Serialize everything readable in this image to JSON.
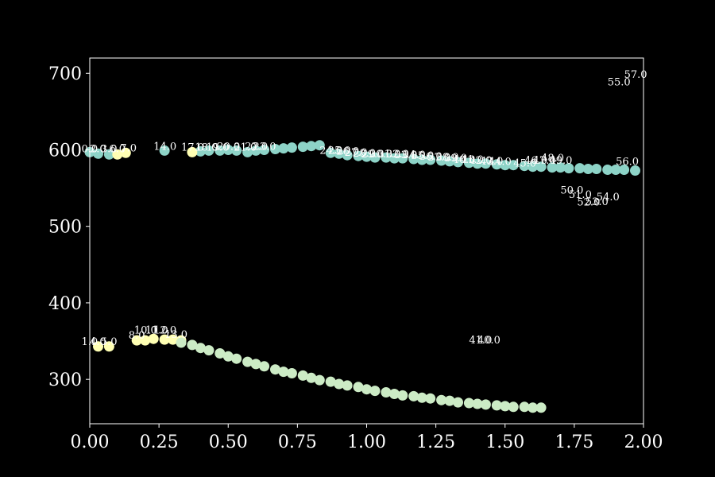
{
  "chart_data": {
    "type": "scatter",
    "xlim": [
      0,
      2
    ],
    "ylim": [
      242,
      720
    ],
    "x_ticks": [
      "0.00",
      "0.25",
      "0.50",
      "0.75",
      "1.00",
      "1.25",
      "1.50",
      "1.75",
      "2.00"
    ],
    "y_ticks": [
      "300",
      "400",
      "500",
      "600",
      "700"
    ],
    "grid": false,
    "colors": {
      "background": "#000000",
      "frame": "#ffffff",
      "text": "#ffffff",
      "teal": "#8dd3c7",
      "yellow": "#ffffb3",
      "mint": "#ccebc5"
    },
    "series": [
      {
        "color": "#8dd3c7",
        "points": [
          [
            0.0,
            597
          ],
          [
            0.03,
            595
          ],
          [
            0.07,
            594
          ],
          [
            0.27,
            599
          ],
          [
            0.4,
            598
          ],
          [
            0.43,
            599
          ],
          [
            0.47,
            599
          ],
          [
            0.5,
            600
          ],
          [
            0.53,
            599
          ],
          [
            0.57,
            597
          ],
          [
            0.6,
            599
          ],
          [
            0.63,
            600
          ],
          [
            0.67,
            601
          ],
          [
            0.7,
            602
          ],
          [
            0.73,
            603
          ],
          [
            0.77,
            604
          ],
          [
            0.8,
            605
          ],
          [
            0.83,
            606
          ],
          [
            0.87,
            596
          ],
          [
            0.9,
            595
          ],
          [
            0.93,
            593
          ],
          [
            0.97,
            592
          ],
          [
            1.0,
            591
          ],
          [
            1.03,
            590
          ],
          [
            1.07,
            590
          ],
          [
            1.1,
            589
          ],
          [
            1.13,
            589
          ],
          [
            1.17,
            588
          ],
          [
            1.2,
            587
          ],
          [
            1.23,
            587
          ],
          [
            1.27,
            586
          ],
          [
            1.3,
            585
          ],
          [
            1.33,
            584
          ],
          [
            1.37,
            583
          ],
          [
            1.4,
            582
          ],
          [
            1.43,
            582
          ],
          [
            1.47,
            581
          ],
          [
            1.5,
            580
          ],
          [
            1.53,
            580
          ],
          [
            1.57,
            579
          ],
          [
            1.6,
            578
          ],
          [
            1.63,
            578
          ],
          [
            1.67,
            577
          ],
          [
            1.7,
            577
          ],
          [
            1.73,
            576
          ],
          [
            1.77,
            576
          ],
          [
            1.8,
            575
          ],
          [
            1.83,
            575
          ],
          [
            1.87,
            574
          ],
          [
            1.9,
            574
          ],
          [
            1.93,
            574
          ],
          [
            1.97,
            573
          ]
        ]
      },
      {
        "color": "#ffffb3",
        "points": [
          [
            0.1,
            594
          ],
          [
            0.13,
            596
          ],
          [
            0.37,
            597
          ],
          [
            0.03,
            343
          ],
          [
            0.07,
            343
          ],
          [
            0.17,
            351
          ],
          [
            0.2,
            351
          ],
          [
            0.23,
            353
          ],
          [
            0.27,
            352
          ],
          [
            0.3,
            352
          ],
          [
            0.33,
            351
          ]
        ]
      },
      {
        "color": "#ccebc5",
        "points": [
          [
            0.33,
            348
          ],
          [
            0.37,
            345
          ],
          [
            0.4,
            341
          ],
          [
            0.43,
            338
          ],
          [
            0.47,
            334
          ],
          [
            0.5,
            330
          ],
          [
            0.53,
            327
          ],
          [
            0.57,
            323
          ],
          [
            0.6,
            320
          ],
          [
            0.63,
            317
          ],
          [
            0.67,
            313
          ],
          [
            0.7,
            310
          ],
          [
            0.73,
            308
          ],
          [
            0.77,
            305
          ],
          [
            0.8,
            302
          ],
          [
            0.83,
            299
          ],
          [
            0.87,
            297
          ],
          [
            0.9,
            294
          ],
          [
            0.93,
            292
          ],
          [
            0.97,
            290
          ],
          [
            1.0,
            287
          ],
          [
            1.03,
            285
          ],
          [
            1.07,
            283
          ],
          [
            1.1,
            281
          ],
          [
            1.13,
            279
          ],
          [
            1.17,
            278
          ],
          [
            1.2,
            276
          ],
          [
            1.23,
            275
          ],
          [
            1.27,
            273
          ],
          [
            1.3,
            272
          ],
          [
            1.33,
            270
          ],
          [
            1.37,
            269
          ],
          [
            1.4,
            268
          ],
          [
            1.43,
            267
          ],
          [
            1.47,
            266
          ],
          [
            1.5,
            265
          ],
          [
            1.53,
            264
          ],
          [
            1.57,
            264
          ],
          [
            1.6,
            263
          ],
          [
            1.63,
            263
          ]
        ]
      }
    ],
    "annotations": [
      {
        "text": "0.0",
        "x": -0.03,
        "y": 597
      },
      {
        "text": "2.0",
        "x": 0.0,
        "y": 597
      },
      {
        "text": "3.0",
        "x": 0.04,
        "y": 597
      },
      {
        "text": "6.0",
        "x": 0.07,
        "y": 597
      },
      {
        "text": "7.0",
        "x": 0.11,
        "y": 598
      },
      {
        "text": "14.0",
        "x": 0.23,
        "y": 600
      },
      {
        "text": "17.0",
        "x": 0.33,
        "y": 599
      },
      {
        "text": "18.0",
        "x": 0.38,
        "y": 599
      },
      {
        "text": "19.0",
        "x": 0.42,
        "y": 599
      },
      {
        "text": "20.0",
        "x": 0.46,
        "y": 600
      },
      {
        "text": "21.0",
        "x": 0.52,
        "y": 599
      },
      {
        "text": "22.0",
        "x": 0.56,
        "y": 600
      },
      {
        "text": "23.0",
        "x": 0.59,
        "y": 600
      },
      {
        "text": "24.0",
        "x": 0.83,
        "y": 595
      },
      {
        "text": "25.0",
        "x": 0.86,
        "y": 595
      },
      {
        "text": "26.0",
        "x": 0.89,
        "y": 594
      },
      {
        "text": "27.0",
        "x": 0.92,
        "y": 592
      },
      {
        "text": "28.0",
        "x": 0.95,
        "y": 591
      },
      {
        "text": "29.0",
        "x": 0.98,
        "y": 590
      },
      {
        "text": "30.0",
        "x": 1.01,
        "y": 590
      },
      {
        "text": "31.0",
        "x": 1.04,
        "y": 590
      },
      {
        "text": "32.0",
        "x": 1.07,
        "y": 590
      },
      {
        "text": "33.0",
        "x": 1.1,
        "y": 589
      },
      {
        "text": "34.0",
        "x": 1.13,
        "y": 589
      },
      {
        "text": "35.0",
        "x": 1.16,
        "y": 588
      },
      {
        "text": "36.0",
        "x": 1.19,
        "y": 587
      },
      {
        "text": "37.0",
        "x": 1.22,
        "y": 586
      },
      {
        "text": "38.0",
        "x": 1.25,
        "y": 586
      },
      {
        "text": "39.0",
        "x": 1.28,
        "y": 585
      },
      {
        "text": "40.0",
        "x": 1.31,
        "y": 583
      },
      {
        "text": "41.0",
        "x": 1.34,
        "y": 583
      },
      {
        "text": "42.0",
        "x": 1.37,
        "y": 582
      },
      {
        "text": "43.0",
        "x": 1.41,
        "y": 581
      },
      {
        "text": "44.0",
        "x": 1.44,
        "y": 580
      },
      {
        "text": "45.0",
        "x": 1.53,
        "y": 578
      },
      {
        "text": "46.0",
        "x": 1.57,
        "y": 582
      },
      {
        "text": "47.0",
        "x": 1.6,
        "y": 582
      },
      {
        "text": "48.0",
        "x": 1.63,
        "y": 585
      },
      {
        "text": "49.0",
        "x": 1.66,
        "y": 582
      },
      {
        "text": "50.0",
        "x": 1.7,
        "y": 543
      },
      {
        "text": "51.0",
        "x": 1.73,
        "y": 537
      },
      {
        "text": "52.0",
        "x": 1.76,
        "y": 527
      },
      {
        "text": "53.0",
        "x": 1.79,
        "y": 528
      },
      {
        "text": "54.0",
        "x": 1.83,
        "y": 534
      },
      {
        "text": "55.0",
        "x": 1.87,
        "y": 684
      },
      {
        "text": "56.0",
        "x": 1.9,
        "y": 580
      },
      {
        "text": "57.0",
        "x": 1.93,
        "y": 694
      },
      {
        "text": "1.0",
        "x": -0.03,
        "y": 345
      },
      {
        "text": "4.0",
        "x": 0.0,
        "y": 345
      },
      {
        "text": "5.0",
        "x": 0.04,
        "y": 345
      },
      {
        "text": "8.0",
        "x": 0.14,
        "y": 353
      },
      {
        "text": "10.0",
        "x": 0.16,
        "y": 360
      },
      {
        "text": "11.0",
        "x": 0.2,
        "y": 360
      },
      {
        "text": "12.0",
        "x": 0.23,
        "y": 360
      },
      {
        "text": "13.0",
        "x": 0.27,
        "y": 354
      },
      {
        "text": "41.0",
        "x": 1.37,
        "y": 347
      },
      {
        "text": "40.0",
        "x": 1.4,
        "y": 347
      }
    ]
  }
}
